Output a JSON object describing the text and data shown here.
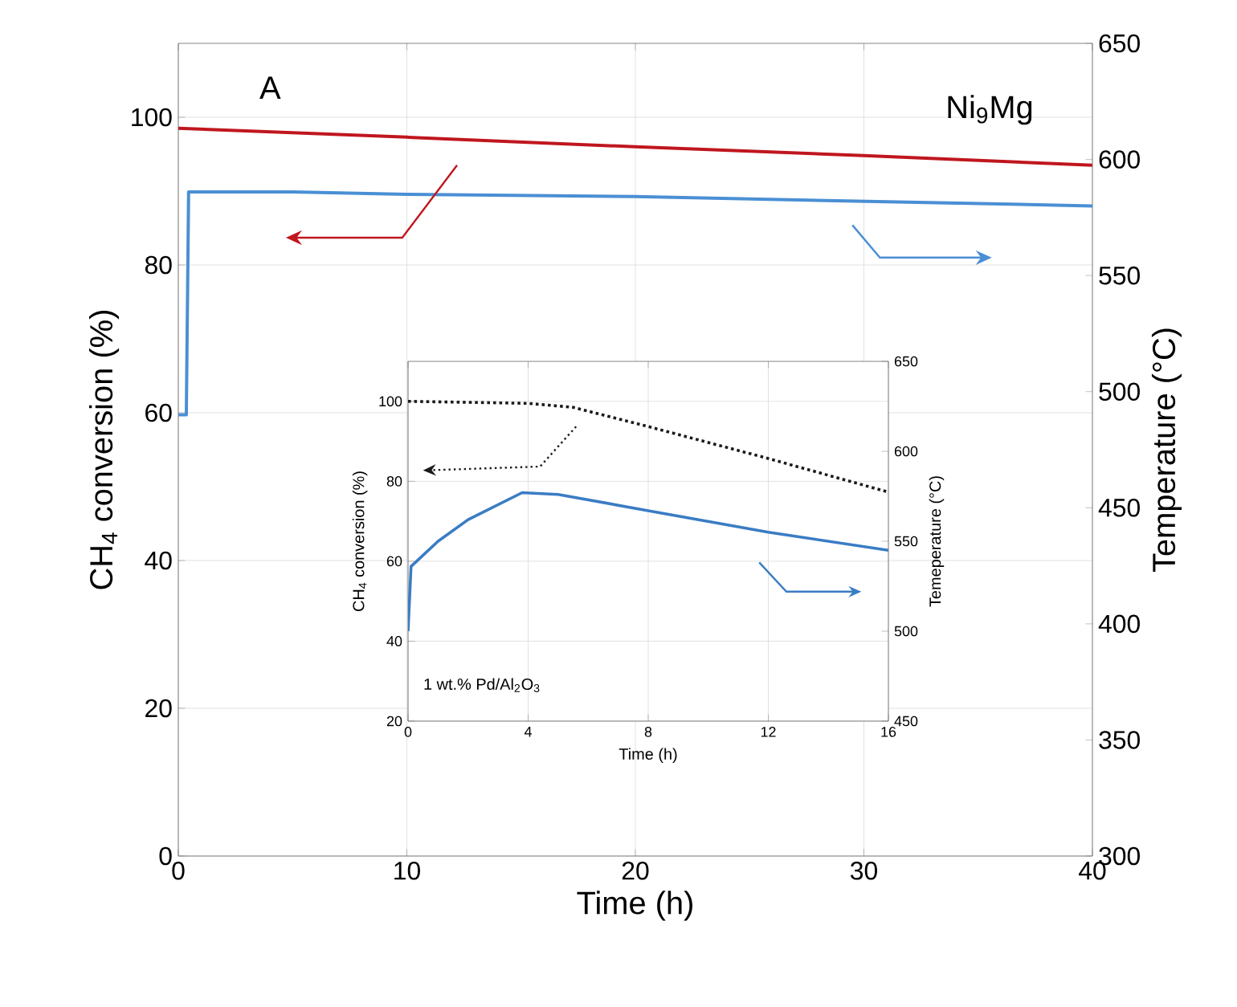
{
  "chart_data": [
    {
      "type": "line",
      "xlabel": "Time (h)",
      "ylabel": "CH$_{4}$ conversion (%)",
      "y2label": "Temperature (°C)",
      "xlim": [
        0,
        40
      ],
      "xticks": [
        0,
        10,
        20,
        30,
        40
      ],
      "ylim": [
        0,
        110
      ],
      "yticks": [
        0,
        20,
        40,
        60,
        80,
        100
      ],
      "y2lim": [
        300,
        650
      ],
      "y2ticks": [
        300,
        350,
        400,
        450,
        500,
        550,
        600,
        650
      ],
      "grid": true,
      "annotations": [
        "A",
        "Ni$_{9}$Mg"
      ],
      "series": [
        {
          "color": "#c0161e",
          "x": [
            0,
            10,
            20,
            30,
            40
          ],
          "values": [
            98.5,
            97.3,
            96,
            94.8,
            93.5
          ]
        },
        {
          "color": "#4a8fd4",
          "axis": "y2",
          "x": [
            0,
            0.35,
            0.45,
            5,
            10,
            20,
            30,
            40
          ],
          "values": [
            490,
            490,
            586,
            586,
            585,
            584,
            582,
            580
          ]
        }
      ]
    },
    {
      "type": "line",
      "xlabel": "Time (h)",
      "ylabel": "CH$_{4}$ conversion (%)",
      "y2label": "Temeperature (°C)",
      "xlim": [
        0,
        16
      ],
      "xticks": [
        0,
        4,
        8,
        12,
        16
      ],
      "ylim": [
        20,
        110
      ],
      "yticks": [
        20,
        40,
        60,
        80,
        100
      ],
      "y2lim": [
        450,
        650
      ],
      "y2ticks": [
        450,
        500,
        550,
        600,
        650
      ],
      "grid": true,
      "annotations": [
        "1 wt.% Pd/Al$_{2}$O$_{3}$"
      ],
      "series": [
        {
          "color": "#1a1a1a",
          "line_style": "dotted",
          "x": [
            0,
            4,
            5.5,
            8,
            12,
            16
          ],
          "values": [
            100,
            99.5,
            98.5,
            93.7,
            85.7,
            77.3
          ]
        },
        {
          "color": "#3a7cc4",
          "axis": "y2",
          "x": [
            0,
            0.1,
            1,
            2,
            3.8,
            5,
            8,
            12,
            16
          ],
          "values": [
            500,
            536,
            550,
            562,
            577,
            576,
            567,
            555,
            545
          ]
        }
      ]
    }
  ]
}
